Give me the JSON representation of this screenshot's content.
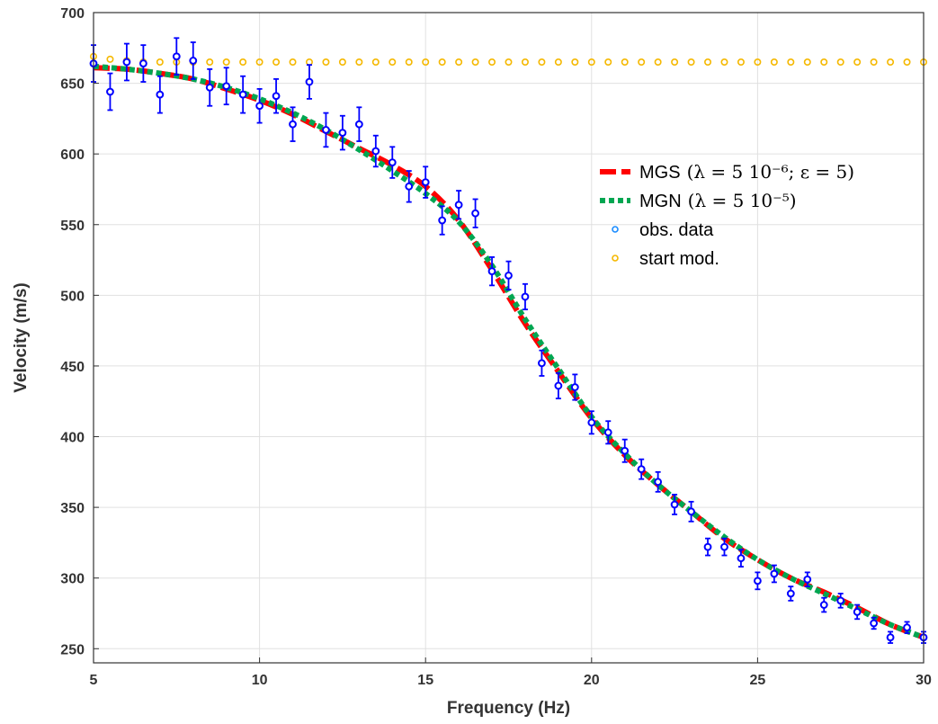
{
  "chart_data": {
    "type": "scatter",
    "title": "",
    "xlabel": "Frequency (Hz)",
    "ylabel": "Velocity (m/s)",
    "xlim": [
      5,
      30
    ],
    "ylim": [
      240,
      700
    ],
    "xticks": [
      "5",
      "10",
      "15",
      "20",
      "25",
      "30"
    ],
    "yticks": [
      "250",
      "300",
      "350",
      "400",
      "450",
      "500",
      "550",
      "600",
      "650",
      "700"
    ],
    "grid": true,
    "legend_position": "upper-right-inside",
    "colors": {
      "mgs": "#ff0000",
      "mgn": "#00a651",
      "obs": "#0000ff",
      "obs_marker": "#1a8cff",
      "start": "#f5b800",
      "grid": "#e0e0e0",
      "axis": "#333333"
    },
    "legend": [
      {
        "label": "MGS",
        "math": "(λ = 5 10⁻⁶; ε = 5)"
      },
      {
        "label": "MGN",
        "math": "(λ = 5 10⁻⁵)"
      },
      {
        "label": "obs. data",
        "math": ""
      },
      {
        "label": "start mod.",
        "math": ""
      }
    ],
    "series": [
      {
        "name": "MGS",
        "style": "dashed-line",
        "x": [
          5,
          6,
          7,
          8,
          9,
          10,
          11,
          12,
          13,
          14,
          15,
          16,
          17,
          18,
          19,
          20,
          21,
          22,
          23,
          24,
          25,
          26,
          27,
          28,
          29,
          30
        ],
        "y": [
          661,
          660,
          657,
          653,
          646,
          638,
          628,
          616,
          604,
          592,
          577,
          553,
          518,
          480,
          446,
          413,
          387,
          366,
          347,
          328,
          313,
          300,
          290,
          279,
          267,
          258
        ]
      },
      {
        "name": "MGN",
        "style": "dotted-line",
        "x": [
          5,
          6,
          7,
          8,
          9,
          10,
          11,
          12,
          13,
          14,
          15,
          16,
          17,
          18,
          19,
          20,
          21,
          22,
          23,
          24,
          25,
          26,
          27,
          28,
          29,
          30
        ],
        "y": [
          662,
          660,
          657,
          653,
          647,
          639,
          629,
          617,
          603,
          588,
          572,
          552,
          521,
          483,
          448,
          414,
          388,
          366,
          347,
          329,
          313,
          300,
          289,
          278,
          267,
          258
        ]
      },
      {
        "name": "obs. data",
        "style": "circle-markers-with-errorbars",
        "x": [
          5,
          5.5,
          6,
          6.5,
          7,
          7.5,
          8,
          8.5,
          9,
          9.5,
          10,
          10.5,
          11,
          11.5,
          12,
          12.5,
          13,
          13.5,
          14,
          14.5,
          15,
          15.5,
          16,
          16.5,
          17,
          17.5,
          18,
          18.5,
          19,
          19.5,
          20,
          20.5,
          21,
          21.5,
          22,
          22.5,
          23,
          23.5,
          24,
          24.5,
          25,
          25.5,
          26,
          26.5,
          27,
          27.5,
          28,
          28.5,
          29,
          29.5,
          30
        ],
        "y": [
          664,
          644,
          665,
          664,
          642,
          669,
          666,
          647,
          648,
          642,
          634,
          641,
          621,
          651,
          617,
          615,
          621,
          602,
          594,
          577,
          580,
          553,
          564,
          558,
          517,
          514,
          499,
          452,
          436,
          435,
          410,
          403,
          390,
          377,
          368,
          352,
          347,
          322,
          322,
          314,
          298,
          303,
          289,
          299,
          281,
          284,
          276,
          268,
          258,
          265,
          258
        ],
        "err": [
          13,
          13,
          13,
          13,
          13,
          13,
          13,
          13,
          13,
          13,
          12,
          12,
          12,
          12,
          12,
          12,
          12,
          11,
          11,
          11,
          11,
          10,
          10,
          10,
          10,
          10,
          9,
          9,
          9,
          9,
          8,
          8,
          8,
          7,
          7,
          7,
          7,
          6,
          6,
          6,
          6,
          6,
          5,
          5,
          5,
          5,
          5,
          4,
          4,
          4,
          4
        ]
      },
      {
        "name": "start mod.",
        "style": "circle-markers",
        "x": [
          5,
          5.5,
          6,
          6.5,
          7,
          7.5,
          8,
          8.5,
          9,
          9.5,
          10,
          10.5,
          11,
          11.5,
          12,
          12.5,
          13,
          13.5,
          14,
          14.5,
          15,
          15.5,
          16,
          16.5,
          17,
          17.5,
          18,
          18.5,
          19,
          19.5,
          20,
          20.5,
          21,
          21.5,
          22,
          22.5,
          23,
          23.5,
          24,
          24.5,
          25,
          25.5,
          26,
          26.5,
          27,
          27.5,
          28,
          28.5,
          29,
          29.5,
          30
        ],
        "y": [
          669,
          667,
          666,
          665,
          665,
          665,
          665,
          665,
          665,
          665,
          665,
          665,
          665,
          665,
          665,
          665,
          665,
          665,
          665,
          665,
          665,
          665,
          665,
          665,
          665,
          665,
          665,
          665,
          665,
          665,
          665,
          665,
          665,
          665,
          665,
          665,
          665,
          665,
          665,
          665,
          665,
          665,
          665,
          665,
          665,
          665,
          665,
          665,
          665,
          665,
          665
        ]
      }
    ]
  }
}
